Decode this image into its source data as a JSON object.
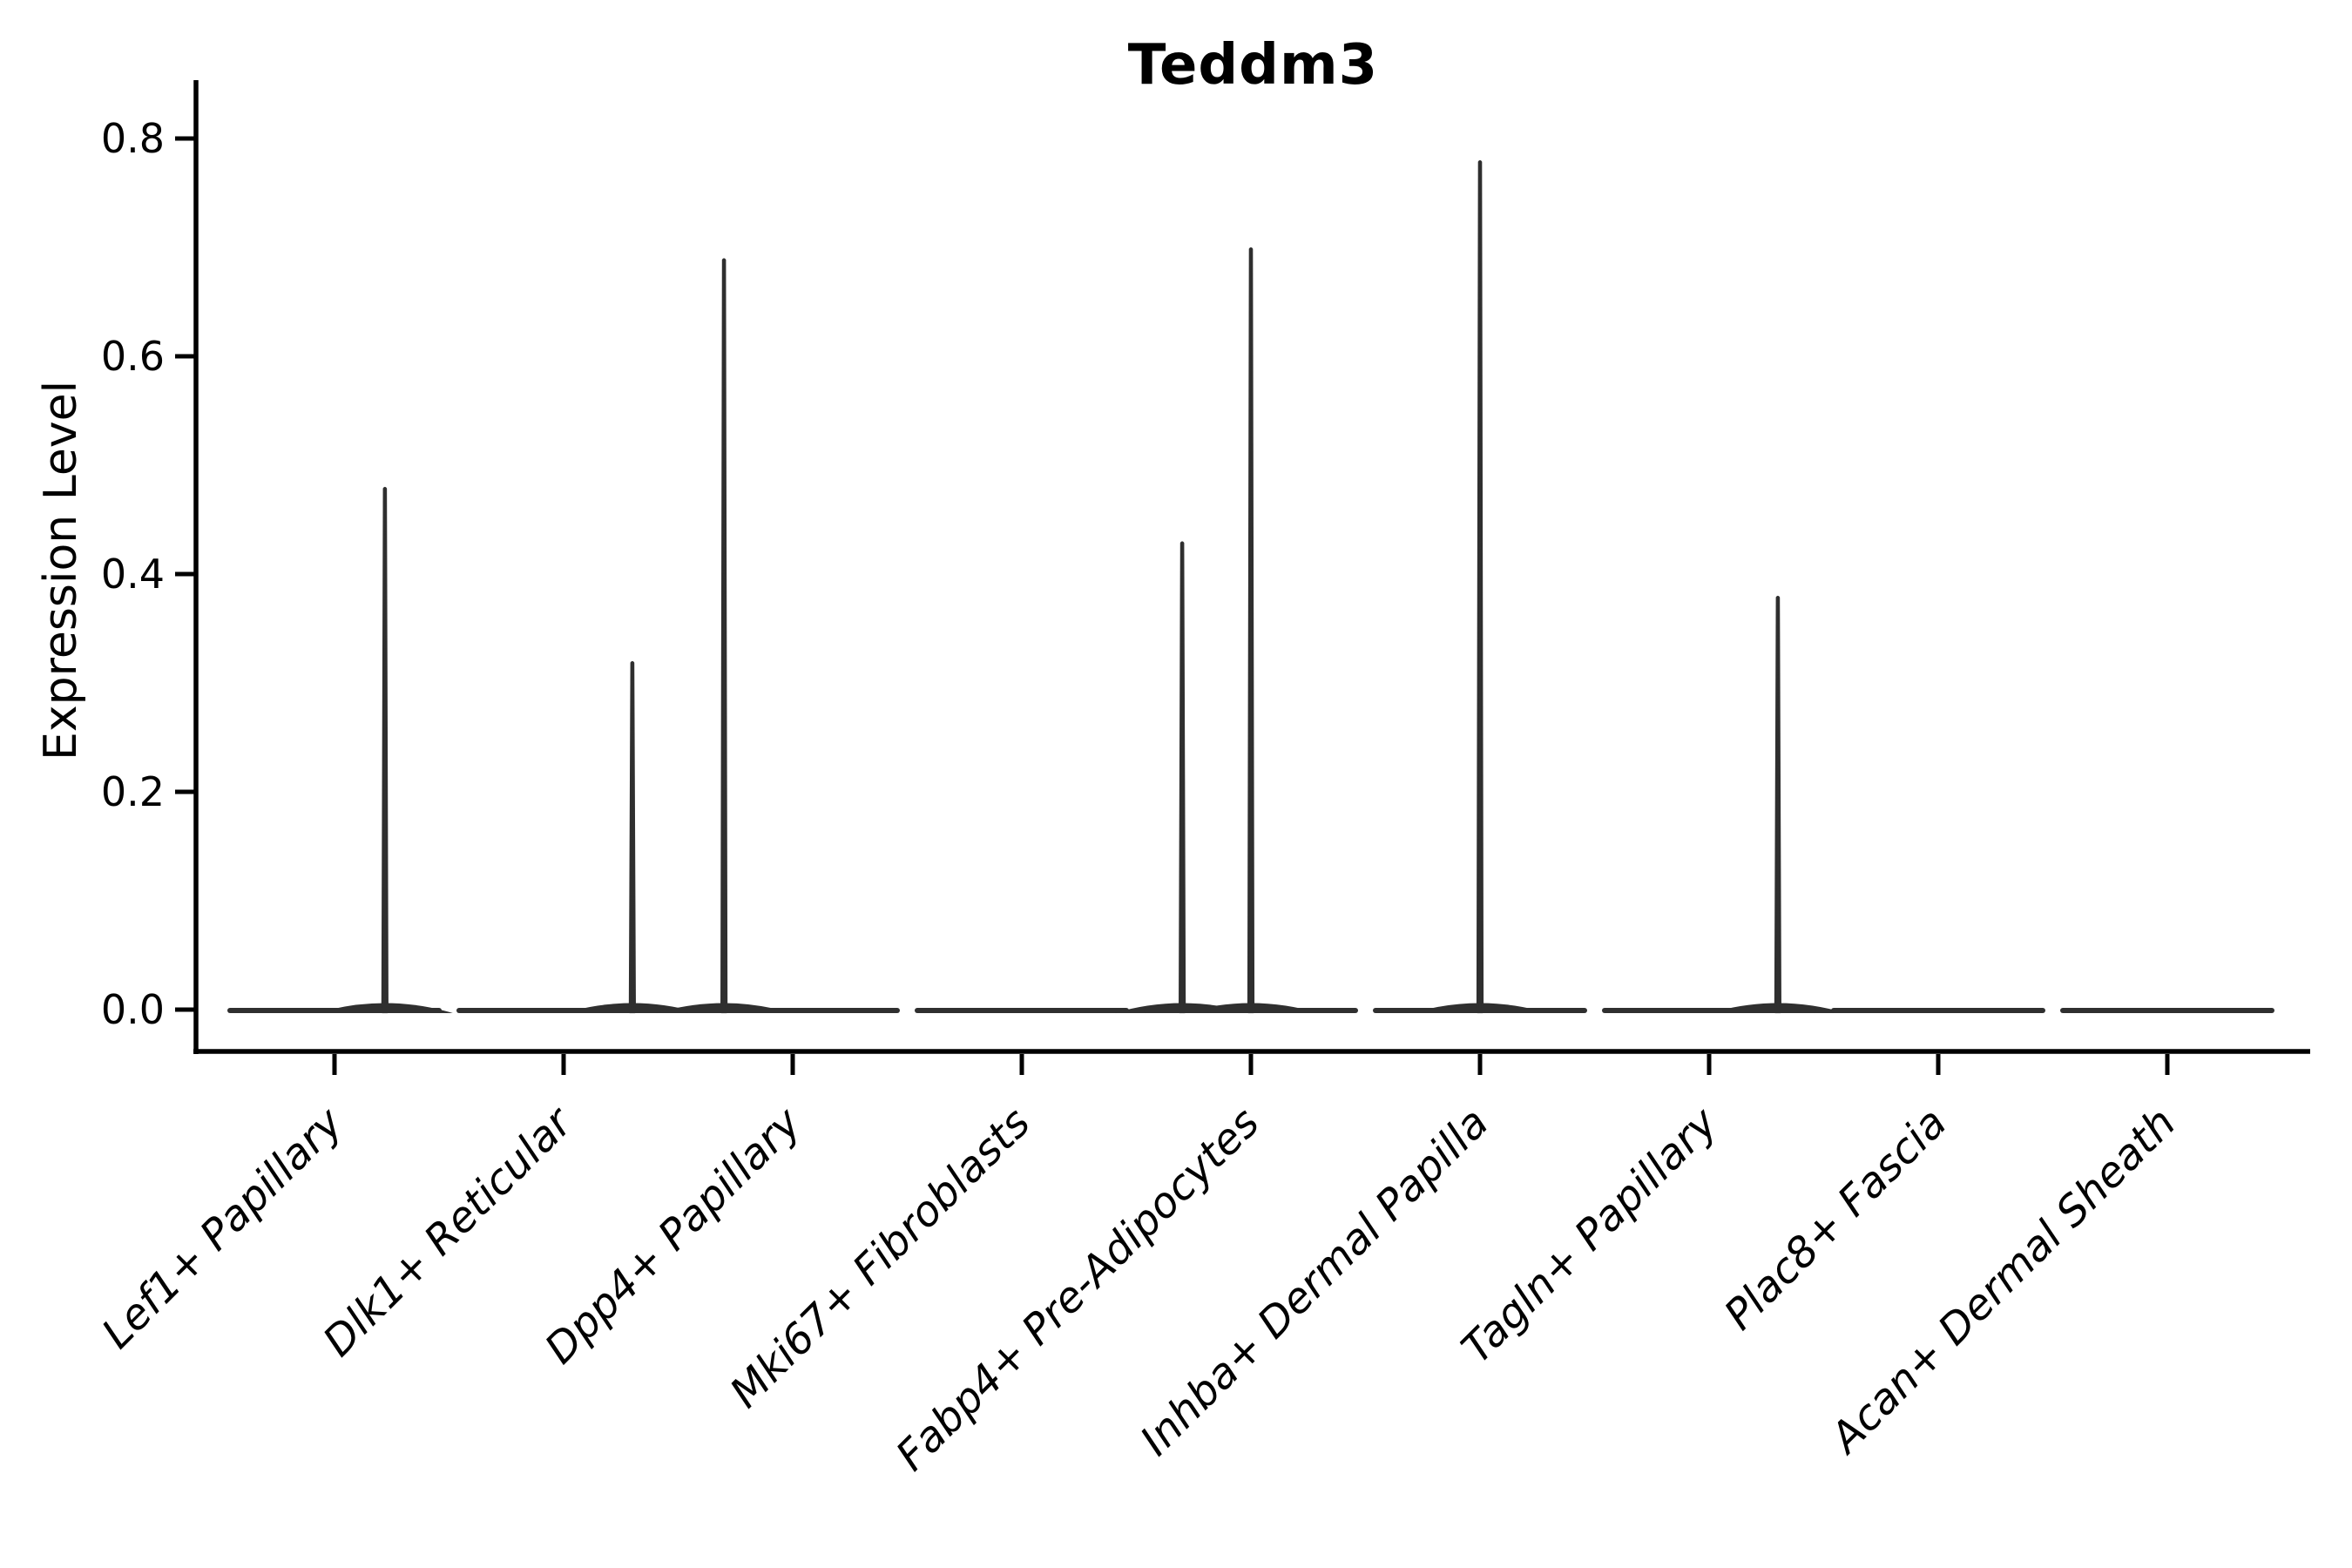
{
  "figure": {
    "background": "#ffffff"
  },
  "chart_data": {
    "type": "violin",
    "title": "Teddm3",
    "ylabel": "Expression Level",
    "xlabel": "",
    "ylim": [
      0,
      0.8
    ],
    "yticks": [
      0.8,
      0.6,
      0.4,
      0.2,
      0.0
    ],
    "ytick_labels": [
      "0.8",
      "0.6",
      "0.4",
      "0.2",
      "0.0"
    ],
    "grid": false,
    "legend": false,
    "categories": [
      "Lef1+ Papillary",
      "Dlk1+ Reticular",
      "Dpp4+ Papillary",
      "Mki67+ Fibroblasts",
      "Fabp4+ Pre-Adipocytes",
      "Inhba+ Dermal Papilla",
      "Tagln+ Papillary",
      "Plac8+ Fascia",
      "Acan+ Dermal Sheath"
    ],
    "violins": [
      {
        "category": "Lef1+ Papillary",
        "max_expression": 0.48,
        "spikes": [
          {
            "pos": 0.22,
            "value": 0.48
          }
        ]
      },
      {
        "category": "Dlk1+ Reticular",
        "max_expression": 0.32,
        "spikes": [
          {
            "pos": 0.3,
            "value": 0.32
          }
        ]
      },
      {
        "category": "Dpp4+ Papillary",
        "max_expression": 0.69,
        "spikes": [
          {
            "pos": -0.3,
            "value": 0.69
          }
        ]
      },
      {
        "category": "Mki67+ Fibroblasts",
        "max_expression": 0.0,
        "spikes": []
      },
      {
        "category": "Fabp4+ Pre-Adipocytes",
        "max_expression": 0.7,
        "spikes": [
          {
            "pos": -0.3,
            "value": 0.43
          },
          {
            "pos": 0.0,
            "value": 0.7
          }
        ]
      },
      {
        "category": "Inhba+ Dermal Papilla",
        "max_expression": 0.78,
        "spikes": [
          {
            "pos": 0.0,
            "value": 0.78
          }
        ]
      },
      {
        "category": "Tagln+ Papillary",
        "max_expression": 0.38,
        "spikes": [
          {
            "pos": 0.3,
            "value": 0.38
          }
        ]
      },
      {
        "category": "Plac8+ Fascia",
        "max_expression": 0.0,
        "spikes": []
      },
      {
        "category": "Acan+ Dermal Sheath",
        "max_expression": 0.0,
        "spikes": []
      }
    ],
    "style": {
      "violin_color": "#2f2f2f",
      "axis_color": "#000000",
      "text_color": "#000000"
    }
  }
}
